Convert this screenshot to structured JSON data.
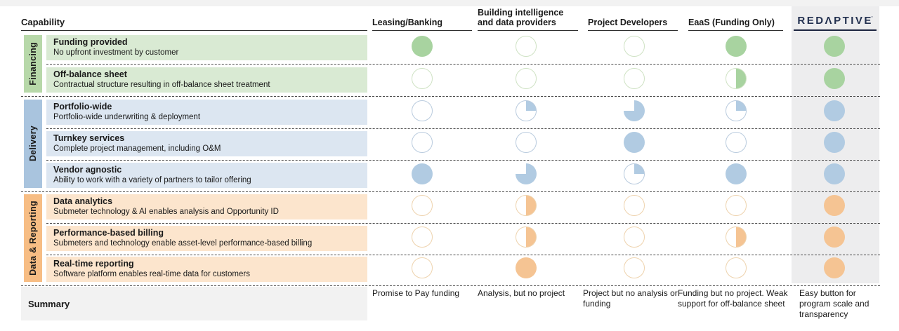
{
  "colors": {
    "top_strip": "#f2f2f2",
    "redaptive_column_bg": "#ededee",
    "summary_box_bg": "#f2f2f2",
    "redaptive_navy": "#22304f",
    "dashed_line": "#4a4a4a"
  },
  "header": {
    "capability_label": "Capability",
    "columns": [
      {
        "id": "leasing-banking",
        "label": "Leasing/Banking"
      },
      {
        "id": "building-intelligence",
        "label": "Building intelligence and data providers"
      },
      {
        "id": "project-developers",
        "label": "Project Developers"
      },
      {
        "id": "eaas",
        "label": "EaaS (Funding Only)"
      },
      {
        "id": "redaptive",
        "label": "REDΛPTIVE",
        "logo": true,
        "logo_mark": "'"
      }
    ]
  },
  "groups": [
    {
      "label": "Financing",
      "group_bg": "#b7d8a9",
      "row_bg": "#d9ead3",
      "fill": "#a8d3a0",
      "outline": "#cfe2c4",
      "rows": [
        {
          "title": "Funding provided",
          "desc": "No upfront investment by customer",
          "values": [
            100,
            0,
            0,
            100,
            100
          ]
        },
        {
          "title": "Off-balance sheet",
          "desc": "Contractual structure resulting in off-balance sheet treatment",
          "values": [
            0,
            0,
            0,
            50,
            100
          ]
        }
      ]
    },
    {
      "label": "Delivery",
      "group_bg": "#a9c4de",
      "row_bg": "#dce6f1",
      "fill": "#b1cbe2",
      "outline": "#b9cbde",
      "rows": [
        {
          "title": "Portfolio-wide",
          "desc": "Portfolio-wide underwriting & deployment",
          "values": [
            0,
            25,
            75,
            25,
            100
          ]
        },
        {
          "title": "Turnkey services",
          "desc": "Complete project management, including O&M",
          "values": [
            0,
            0,
            100,
            0,
            100
          ]
        },
        {
          "title": "Vendor agnostic",
          "desc": "Ability to work with a variety of partners to tailor offering",
          "values": [
            100,
            75,
            25,
            100,
            100
          ]
        }
      ]
    },
    {
      "label": "Data & Reporting",
      "group_bg": "#f7bd84",
      "row_bg": "#fce5cd",
      "fill": "#f5c493",
      "outline": "#eed3ae",
      "rows": [
        {
          "title": "Data analytics",
          "desc": "Submeter technology & AI enables analysis and Opportunity ID",
          "values": [
            0,
            50,
            0,
            0,
            100
          ]
        },
        {
          "title": "Performance-based billing",
          "desc": "Submeters and technology enable asset-level performance-based billing",
          "values": [
            0,
            50,
            0,
            50,
            100
          ]
        },
        {
          "title": "Real-time reporting",
          "desc": "Software platform enables real-time data for customers",
          "values": [
            0,
            100,
            0,
            0,
            100
          ]
        }
      ]
    }
  ],
  "summary": {
    "label": "Summary",
    "cells": [
      "Promise to Pay funding",
      "Analysis, but no project",
      "Project but no analysis or funding",
      "Funding but no project. Weak support for off-balance sheet",
      "Easy button for program scale and transparency"
    ]
  }
}
